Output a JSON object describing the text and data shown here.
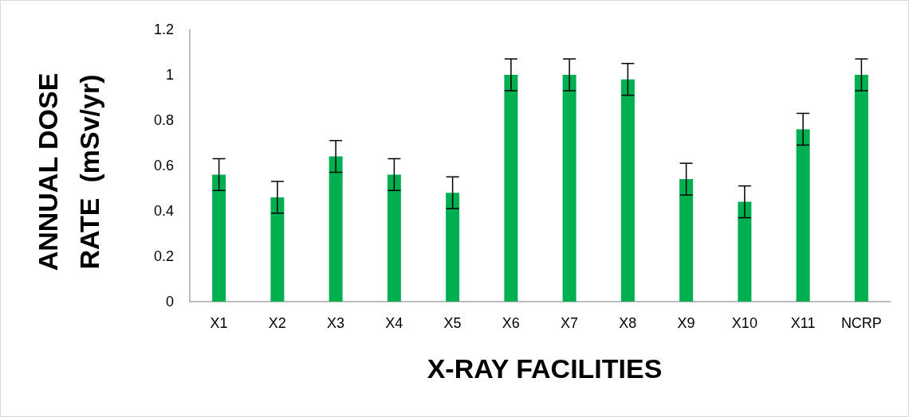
{
  "chart_data": {
    "type": "bar",
    "xlabel": "X-RAY FACILITIES",
    "ylabel": "ANNUAL DOSE\nRATE  (mSv/yr)",
    "categories": [
      "X1",
      "X2",
      "X3",
      "X4",
      "X5",
      "X6",
      "X7",
      "X8",
      "X9",
      "X10",
      "X11",
      "NCRP"
    ],
    "values": [
      0.56,
      0.46,
      0.64,
      0.56,
      0.48,
      1.0,
      1.0,
      0.98,
      0.54,
      0.44,
      0.76,
      1.0
    ],
    "errors": [
      0.07,
      0.07,
      0.07,
      0.07,
      0.07,
      0.07,
      0.07,
      0.07,
      0.07,
      0.07,
      0.07,
      0.07
    ],
    "color": "#00b050",
    "ylim": [
      0,
      1.2
    ],
    "yticks": [
      0,
      0.2,
      0.4,
      0.6,
      0.8,
      1,
      1.2
    ],
    "grid": false
  }
}
